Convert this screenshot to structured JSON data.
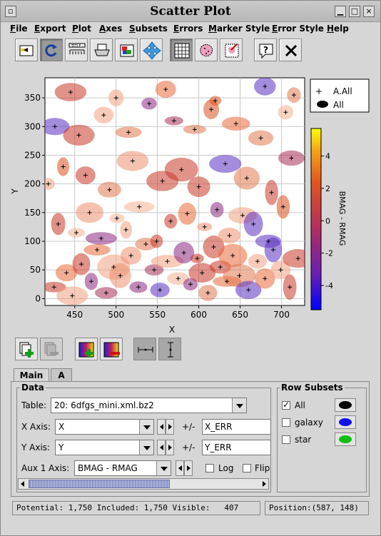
{
  "window": {
    "title": "Scatter Plot"
  },
  "menu": [
    "File",
    "Export",
    "Plot",
    "Axes",
    "Subsets",
    "Errors",
    "Marker Style",
    "Error Style",
    "Help"
  ],
  "toolbar": {
    "tools": [
      "subset-from-visible",
      "replot",
      "axis-editor",
      "print",
      "export-image",
      "pan-zoom",
      "grid",
      "draw-subset-region",
      "draw-subset-blob",
      "help",
      "close"
    ]
  },
  "plot": {
    "legend": [
      {
        "marker": "+",
        "label": "A.All"
      },
      {
        "marker": "ellipse",
        "label": "All"
      }
    ],
    "colorbar": {
      "label": "BMAG - RMAG",
      "ticks": [
        "4",
        "2",
        "0",
        "-2",
        "-4"
      ],
      "range": [
        -5.5,
        5.7
      ]
    }
  },
  "chart_data": {
    "type": "scatter",
    "title": "",
    "xlabel": "X",
    "ylabel": "Y",
    "xlim": [
      414,
      728
    ],
    "ylim": [
      -12,
      385
    ],
    "xticks": [
      "450",
      "500",
      "550",
      "600",
      "650",
      "700"
    ],
    "yticks": [
      "0",
      "50",
      "100",
      "150",
      "200",
      "250",
      "300",
      "350"
    ],
    "grid": true,
    "legend_position": "right",
    "colormap_label": "BMAG - RMAG",
    "series": [
      {
        "name": "A.All",
        "x": [
          425,
          440,
          447,
          458,
          470,
          477,
          488,
          497,
          505,
          518,
          527,
          536,
          546,
          553,
          562,
          575,
          582,
          590,
          598,
          604,
          611,
          618,
          626,
          634,
          641,
          649,
          660,
          671,
          680,
          690,
          699,
          710,
          720,
          430,
          452,
          468,
          482,
          501,
          512,
          528,
          549,
          566,
          586,
          607,
          622,
          637,
          653,
          666,
          684,
          702,
          418,
          436,
          463,
          492,
          520,
          556,
          579,
          600,
          632,
          658,
          688,
          712,
          426,
          455,
          485,
          515,
          540,
          570,
          595,
          615,
          645,
          675,
          705,
          445,
          500,
          560,
          620,
          680,
          715
        ],
        "y": [
          20,
          45,
          5,
          60,
          30,
          85,
          10,
          55,
          40,
          75,
          20,
          95,
          50,
          15,
          65,
          35,
          80,
          25,
          70,
          45,
          10,
          90,
          55,
          30,
          75,
          40,
          15,
          65,
          35,
          85,
          50,
          20,
          70,
          130,
          115,
          150,
          105,
          140,
          120,
          160,
          100,
          135,
          148,
          125,
          155,
          110,
          145,
          130,
          100,
          160,
          200,
          230,
          215,
          190,
          240,
          205,
          225,
          195,
          235,
          210,
          185,
          245,
          300,
          285,
          320,
          290,
          340,
          310,
          295,
          330,
          305,
          280,
          325,
          360,
          350,
          365,
          345,
          370,
          355
        ]
      }
    ],
    "colorbar_range": [
      -5.5,
      5.7
    ]
  },
  "tools2": [
    "add-dataset",
    "remove-dataset",
    "add-aux-axis",
    "remove-aux-axis",
    "x-error-bar",
    "y-error-bar"
  ],
  "tabs": [
    "Main",
    "A"
  ],
  "data": {
    "group_label": "Data",
    "table_label": "Table:",
    "table_value": "20: 6dfgs_mini.xml.bz2",
    "x_label": "X Axis:",
    "x_value": "X",
    "x_err_label": "+/-",
    "x_err_value": "X_ERR",
    "y_label": "Y Axis:",
    "y_value": "Y",
    "y_err_label": "+/-",
    "y_err_value": "Y_ERR",
    "aux_label": "Aux 1 Axis:",
    "aux_value": "BMAG - RMAG",
    "log_label": "Log",
    "flip_label": "Flip"
  },
  "subsets": {
    "group_label": "Row Subsets",
    "items": [
      {
        "label": "All",
        "checked": true,
        "color": "#000000"
      },
      {
        "label": "galaxy",
        "checked": false,
        "color": "#1010ee"
      },
      {
        "label": "star",
        "checked": false,
        "color": "#10c010"
      }
    ]
  },
  "status": {
    "counts": "Potential: 1,750 Included: 1,750 Visible:   407",
    "position": "Position:(587, 148)"
  }
}
